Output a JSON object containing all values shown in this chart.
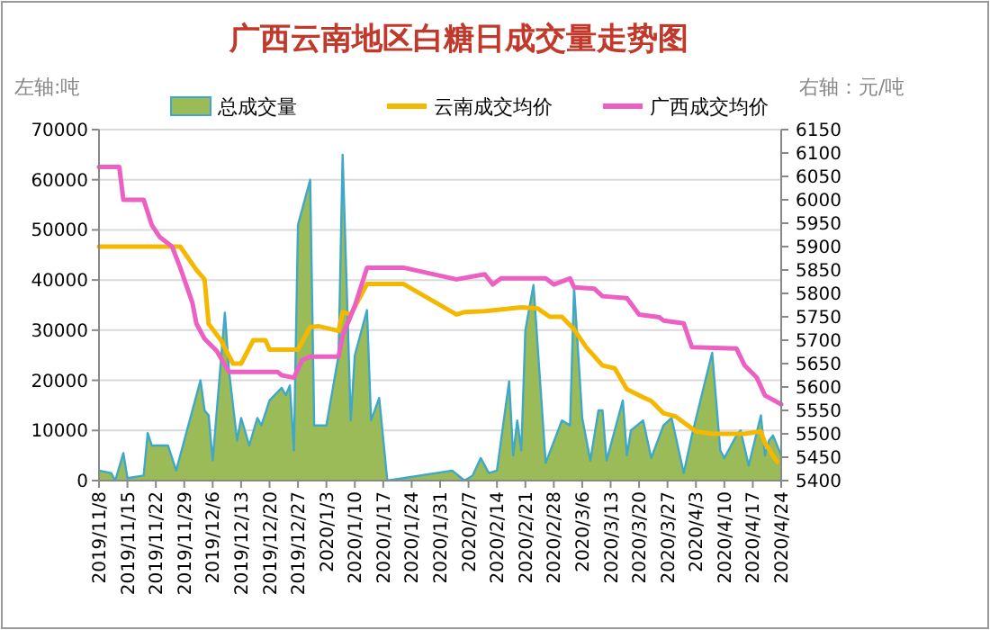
{
  "chart_data": {
    "type": "area",
    "title": "广西云南地区白糖日成交量走势图",
    "ylabel": "左轴:吨",
    "y2label": "右轴：元/吨",
    "legend": "top",
    "grid": "y",
    "xlim": [
      "2019-11-08",
      "2020-04-24"
    ],
    "xticks": [
      {
        "value": "2019-11-08",
        "label": "2019/11/8"
      },
      {
        "value": "2019-11-15",
        "label": "2019/11/15"
      },
      {
        "value": "2019-11-22",
        "label": "2019/11/22"
      },
      {
        "value": "2019-11-29",
        "label": "2019/11/29"
      },
      {
        "value": "2019-12-06",
        "label": "2019/12/6"
      },
      {
        "value": "2019-12-13",
        "label": "2019/12/13"
      },
      {
        "value": "2019-12-20",
        "label": "2019/12/20"
      },
      {
        "value": "2019-12-27",
        "label": "2019/12/27"
      },
      {
        "value": "2020-01-03",
        "label": "2020/1/3"
      },
      {
        "value": "2020-01-10",
        "label": "2020/1/10"
      },
      {
        "value": "2020-01-17",
        "label": "2020/1/17"
      },
      {
        "value": "2020-01-24",
        "label": "2020/1/24"
      },
      {
        "value": "2020-01-31",
        "label": "2020/1/31"
      },
      {
        "value": "2020-02-07",
        "label": "2020/2/7"
      },
      {
        "value": "2020-02-14",
        "label": "2020/2/14"
      },
      {
        "value": "2020-02-21",
        "label": "2020/2/21"
      },
      {
        "value": "2020-02-28",
        "label": "2020/2/28"
      },
      {
        "value": "2020-03-06",
        "label": "2020/3/6"
      },
      {
        "value": "2020-03-13",
        "label": "2020/3/13"
      },
      {
        "value": "2020-03-20",
        "label": "2020/3/20"
      },
      {
        "value": "2020-03-27",
        "label": "2020/3/27"
      },
      {
        "value": "2020-04-03",
        "label": "2020/4/3"
      },
      {
        "value": "2020-04-10",
        "label": "2020/4/10"
      },
      {
        "value": "2020-04-17",
        "label": "2020/4/17"
      },
      {
        "value": "2020-04-24",
        "label": "2020/4/24"
      }
    ],
    "ylim": [
      0,
      70000
    ],
    "yticks": [
      0,
      10000,
      20000,
      30000,
      40000,
      50000,
      60000,
      70000
    ],
    "y2lim": [
      5400,
      6150
    ],
    "y2ticks": [
      5400,
      5450,
      5500,
      5550,
      5600,
      5650,
      5700,
      5750,
      5800,
      5850,
      5900,
      5950,
      6000,
      6050,
      6100,
      6150
    ],
    "series": [
      {
        "name": "总成交量",
        "color": "#9bbb59",
        "x": [
          "2019-11-08",
          "2019-11-11",
          "2019-11-12",
          "2019-11-14",
          "2019-11-15",
          "2019-11-19",
          "2019-11-20",
          "2019-11-21",
          "2019-11-25",
          "2019-11-27",
          "2019-12-03",
          "2019-12-04",
          "2019-12-05",
          "2019-12-06",
          "2019-12-09",
          "2019-12-10",
          "2019-12-12",
          "2019-12-13",
          "2019-12-15",
          "2019-12-17",
          "2019-12-18",
          "2019-12-20",
          "2019-12-23",
          "2019-12-24",
          "2019-12-25",
          "2019-12-26",
          "2019-12-27",
          "2019-12-30",
          "2019-12-31",
          "2020-01-03",
          "2020-01-06",
          "2020-01-07",
          "2020-01-09",
          "2020-01-10",
          "2020-01-13",
          "2020-01-14",
          "2020-01-16",
          "2020-01-18",
          "2020-02-03",
          "2020-02-06",
          "2020-02-08",
          "2020-02-10",
          "2020-02-12",
          "2020-02-14",
          "2020-02-17",
          "2020-02-18",
          "2020-02-19",
          "2020-02-20",
          "2020-02-21",
          "2020-02-23",
          "2020-02-26",
          "2020-03-01",
          "2020-03-03",
          "2020-03-04",
          "2020-03-06",
          "2020-03-08",
          "2020-03-10",
          "2020-03-11",
          "2020-03-12",
          "2020-03-16",
          "2020-03-17",
          "2020-03-18",
          "2020-03-21",
          "2020-03-23",
          "2020-03-26",
          "2020-03-28",
          "2020-03-31",
          "2020-04-02",
          "2020-04-07",
          "2020-04-09",
          "2020-04-10",
          "2020-04-13",
          "2020-04-14",
          "2020-04-16",
          "2020-04-19",
          "2020-04-20",
          "2020-04-21",
          "2020-04-22",
          "2020-04-24"
        ],
        "values": [
          2000,
          1500,
          0,
          5500,
          500,
          1000,
          9500,
          7000,
          7000,
          2000,
          20000,
          14000,
          13000,
          4000,
          33500,
          22000,
          8000,
          12500,
          7000,
          12500,
          11000,
          16000,
          18500,
          17000,
          19000,
          6000,
          51000,
          60000,
          11000,
          11000,
          25000,
          65000,
          12000,
          25000,
          34000,
          12000,
          16500,
          0,
          2000,
          0,
          1000,
          4500,
          1500,
          2000,
          19800,
          5000,
          12000,
          6000,
          30000,
          39000,
          3500,
          12000,
          11000,
          38500,
          12500,
          4000,
          14000,
          14000,
          4000,
          16000,
          5000,
          10000,
          12000,
          4500,
          11000,
          12500,
          1500,
          9000,
          25500,
          6000,
          4500,
          9000,
          10000,
          3000,
          13000,
          5000,
          8000,
          9000,
          5000
        ]
      },
      {
        "name": "云南成交均价",
        "type": "line",
        "axis": "y2",
        "color": "#f5b800",
        "x": [
          "2019-11-08",
          "2019-11-28",
          "2019-12-02",
          "2019-12-04",
          "2019-12-05",
          "2019-12-08",
          "2019-12-11",
          "2019-12-13",
          "2019-12-16",
          "2019-12-19",
          "2019-12-20",
          "2019-12-27",
          "2019-12-30",
          "2020-01-01",
          "2020-01-06",
          "2020-01-07",
          "2020-01-09",
          "2020-01-13",
          "2020-01-22",
          "2020-02-04",
          "2020-02-06",
          "2020-02-11",
          "2020-02-20",
          "2020-02-24",
          "2020-02-27",
          "2020-03-01",
          "2020-03-04",
          "2020-03-07",
          "2020-03-11",
          "2020-03-14",
          "2020-03-17",
          "2020-03-20",
          "2020-03-23",
          "2020-03-26",
          "2020-03-29",
          "2020-04-01",
          "2020-04-03",
          "2020-04-07",
          "2020-04-15",
          "2020-04-19",
          "2020-04-20",
          "2020-04-23"
        ],
        "values": [
          5900,
          5900,
          5850,
          5830,
          5735,
          5700,
          5650,
          5650,
          5700,
          5700,
          5680,
          5680,
          5728,
          5730,
          5720,
          5760,
          5755,
          5820,
          5820,
          5755,
          5760,
          5762,
          5770,
          5768,
          5750,
          5750,
          5723,
          5685,
          5646,
          5640,
          5595,
          5582,
          5570,
          5544,
          5537,
          5518,
          5505,
          5500,
          5500,
          5505,
          5480,
          5440
        ]
      },
      {
        "name": "广西成交均价",
        "type": "line",
        "axis": "y2",
        "color": "#ec5fc3",
        "x": [
          "2019-11-08",
          "2019-11-13",
          "2019-11-14",
          "2019-11-19",
          "2019-11-21",
          "2019-11-23",
          "2019-11-26",
          "2019-11-28",
          "2019-12-01",
          "2019-12-02",
          "2019-12-04",
          "2019-12-07",
          "2019-12-10",
          "2019-12-22",
          "2019-12-23",
          "2019-12-26",
          "2019-12-28",
          "2019-12-30",
          "2020-01-06",
          "2020-01-07",
          "2020-01-10",
          "2020-01-13",
          "2020-01-22",
          "2020-02-04",
          "2020-02-11",
          "2020-02-13",
          "2020-02-15",
          "2020-02-26",
          "2020-02-28",
          "2020-03-03",
          "2020-03-04",
          "2020-03-09",
          "2020-03-11",
          "2020-03-17",
          "2020-03-20",
          "2020-03-25",
          "2020-03-26",
          "2020-03-31",
          "2020-04-02",
          "2020-04-13",
          "2020-04-15",
          "2020-04-18",
          "2020-04-20",
          "2020-04-24"
        ],
        "values": [
          6070,
          6070,
          6000,
          6000,
          5946,
          5920,
          5900,
          5855,
          5780,
          5735,
          5703,
          5677,
          5632,
          5632,
          5625,
          5620,
          5657,
          5665,
          5665,
          5710,
          5773,
          5855,
          5855,
          5830,
          5841,
          5819,
          5832,
          5832,
          5819,
          5832,
          5813,
          5810,
          5794,
          5790,
          5755,
          5749,
          5742,
          5736,
          5685,
          5682,
          5646,
          5620,
          5582,
          5563
        ]
      }
    ]
  }
}
